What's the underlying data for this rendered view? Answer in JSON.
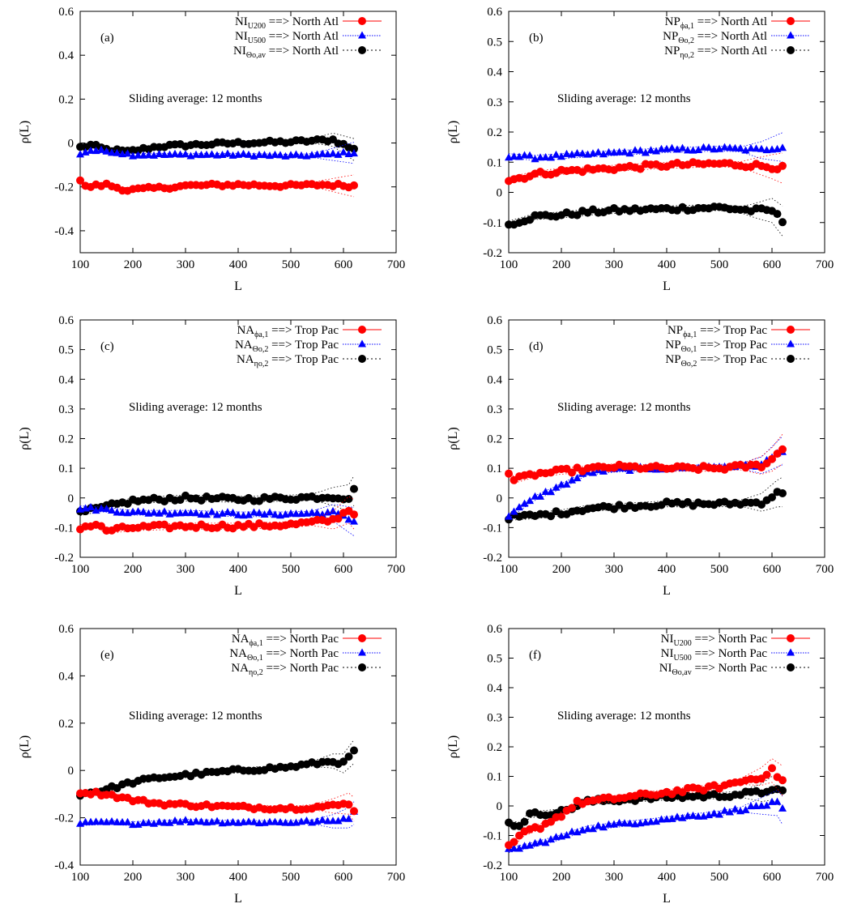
{
  "chart_data": [
    {
      "panel": "(a)",
      "type": "scatter",
      "xlabel": "L",
      "ylabel": "ρ(L)",
      "xlim": [
        100,
        700
      ],
      "ylim": [
        -0.5,
        0.6
      ],
      "xticks": [
        100,
        200,
        300,
        400,
        500,
        600,
        700
      ],
      "yticks": [
        -0.4,
        -0.2,
        0,
        0.2,
        0.4,
        0.6
      ],
      "ytick_labels": [
        "-0.4",
        "-0.2",
        "0",
        "0.2",
        "0.4",
        "0.6"
      ],
      "annotation": "Sliding average: 12 months",
      "legend_position": "top-right",
      "series": [
        {
          "base": "NI",
          "sub": "U200",
          "target": "==> North Atl",
          "color": "#ff0000",
          "marker": "circle",
          "anchors": [
            [
              100,
              -0.17
            ],
            [
              110,
              -0.2
            ],
            [
              150,
              -0.19
            ],
            [
              190,
              -0.215
            ],
            [
              250,
              -0.205
            ],
            [
              300,
              -0.195
            ],
            [
              400,
              -0.19
            ],
            [
              500,
              -0.195
            ],
            [
              560,
              -0.19
            ],
            [
              620,
              -0.195
            ]
          ]
        },
        {
          "base": "NI",
          "sub": "U500",
          "target": "==> North Atl",
          "color": "#0000ff",
          "marker": "triangle",
          "anchors": [
            [
              100,
              -0.05
            ],
            [
              120,
              -0.035
            ],
            [
              160,
              -0.04
            ],
            [
              200,
              -0.055
            ],
            [
              300,
              -0.055
            ],
            [
              400,
              -0.055
            ],
            [
              500,
              -0.06
            ],
            [
              560,
              -0.055
            ],
            [
              620,
              -0.045
            ]
          ]
        },
        {
          "base": "NI",
          "sub": "Θo,av",
          "target": "==> North Atl",
          "color": "#000000",
          "marker": "circle",
          "anchors": [
            [
              100,
              -0.02
            ],
            [
              120,
              -0.01
            ],
            [
              150,
              -0.03
            ],
            [
              190,
              -0.04
            ],
            [
              250,
              -0.015
            ],
            [
              300,
              -0.01
            ],
            [
              400,
              0.0
            ],
            [
              500,
              0.005
            ],
            [
              580,
              0.015
            ],
            [
              620,
              -0.03
            ]
          ]
        }
      ]
    },
    {
      "panel": "(b)",
      "type": "scatter",
      "xlabel": "L",
      "ylabel": "ρ(L)",
      "xlim": [
        100,
        700
      ],
      "ylim": [
        -0.2,
        0.6
      ],
      "xticks": [
        100,
        200,
        300,
        400,
        500,
        600,
        700
      ],
      "yticks": [
        -0.2,
        -0.1,
        0,
        0.1,
        0.2,
        0.3,
        0.4,
        0.5,
        0.6
      ],
      "ytick_labels": [
        "-0.2",
        "-0.1",
        "0",
        "0.1",
        "0.2",
        "0.3",
        "0.4",
        "0.5",
        "0.6"
      ],
      "annotation": "Sliding average: 12 months",
      "legend_position": "top-right",
      "series": [
        {
          "base": "NP",
          "sub": "ϕa,1",
          "target": "==> North Atl",
          "color": "#ff0000",
          "marker": "circle",
          "anchors": [
            [
              100,
              0.04
            ],
            [
              150,
              0.06
            ],
            [
              200,
              0.07
            ],
            [
              300,
              0.08
            ],
            [
              400,
              0.09
            ],
            [
              500,
              0.095
            ],
            [
              560,
              0.09
            ],
            [
              600,
              0.085
            ],
            [
              620,
              0.08
            ]
          ]
        },
        {
          "base": "NP",
          "sub": "Θo,2",
          "target": "==> North Atl",
          "color": "#0000ff",
          "marker": "triangle",
          "anchors": [
            [
              100,
              0.12
            ],
            [
              150,
              0.115
            ],
            [
              200,
              0.12
            ],
            [
              300,
              0.13
            ],
            [
              400,
              0.14
            ],
            [
              500,
              0.145
            ],
            [
              580,
              0.14
            ],
            [
              620,
              0.15
            ]
          ]
        },
        {
          "base": "NP",
          "sub": "ηo,2",
          "target": "==> North Atl",
          "color": "#000000",
          "marker": "circle",
          "anchors": [
            [
              100,
              -0.105
            ],
            [
              150,
              -0.08
            ],
            [
              200,
              -0.075
            ],
            [
              250,
              -0.065
            ],
            [
              300,
              -0.06
            ],
            [
              400,
              -0.055
            ],
            [
              500,
              -0.05
            ],
            [
              560,
              -0.06
            ],
            [
              600,
              -0.06
            ],
            [
              620,
              -0.095
            ]
          ]
        }
      ]
    },
    {
      "panel": "(c)",
      "type": "scatter",
      "xlabel": "L",
      "ylabel": "ρ(L)",
      "xlim": [
        100,
        700
      ],
      "ylim": [
        -0.2,
        0.6
      ],
      "xticks": [
        100,
        200,
        300,
        400,
        500,
        600,
        700
      ],
      "yticks": [
        -0.2,
        -0.1,
        0,
        0.1,
        0.2,
        0.3,
        0.4,
        0.5,
        0.6
      ],
      "ytick_labels": [
        "-0.2",
        "-0.1",
        "0",
        "0.1",
        "0.2",
        "0.3",
        "0.4",
        "0.5",
        "0.6"
      ],
      "annotation": "Sliding average: 12 months",
      "legend_position": "top-right",
      "series": [
        {
          "base": "NA",
          "sub": "ϕa,1",
          "target": "==> Trop Pac",
          "color": "#ff0000",
          "marker": "circle",
          "anchors": [
            [
              100,
              -0.1
            ],
            [
              130,
              -0.09
            ],
            [
              150,
              -0.11
            ],
            [
              200,
              -0.1
            ],
            [
              300,
              -0.095
            ],
            [
              400,
              -0.095
            ],
            [
              500,
              -0.09
            ],
            [
              580,
              -0.075
            ],
            [
              610,
              -0.04
            ],
            [
              620,
              -0.055
            ]
          ]
        },
        {
          "base": "NA",
          "sub": "Θo,2",
          "target": "==> Trop Pac",
          "color": "#0000ff",
          "marker": "triangle",
          "anchors": [
            [
              100,
              -0.035
            ],
            [
              150,
              -0.04
            ],
            [
              200,
              -0.05
            ],
            [
              300,
              -0.05
            ],
            [
              400,
              -0.055
            ],
            [
              500,
              -0.055
            ],
            [
              580,
              -0.05
            ],
            [
              620,
              -0.08
            ]
          ]
        },
        {
          "base": "NA",
          "sub": "ηo,2",
          "target": "==> Trop Pac",
          "color": "#000000",
          "marker": "circle",
          "anchors": [
            [
              100,
              -0.05
            ],
            [
              150,
              -0.03
            ],
            [
              200,
              -0.01
            ],
            [
              300,
              0.0
            ],
            [
              400,
              -0.005
            ],
            [
              500,
              0.0
            ],
            [
              580,
              0.005
            ],
            [
              610,
              0.0
            ],
            [
              620,
              0.025
            ]
          ]
        }
      ]
    },
    {
      "panel": "(d)",
      "type": "scatter",
      "xlabel": "L",
      "ylabel": "ρ(L)",
      "xlim": [
        100,
        700
      ],
      "ylim": [
        -0.2,
        0.6
      ],
      "xticks": [
        100,
        200,
        300,
        400,
        500,
        600,
        700
      ],
      "yticks": [
        -0.2,
        -0.1,
        0,
        0.1,
        0.2,
        0.3,
        0.4,
        0.5,
        0.6
      ],
      "ytick_labels": [
        "-0.2",
        "-0.1",
        "0",
        "0.1",
        "0.2",
        "0.3",
        "0.4",
        "0.5",
        "0.6"
      ],
      "annotation": "Sliding average: 12 months",
      "legend_position": "top-right",
      "series": [
        {
          "base": "NP",
          "sub": "ϕa,1",
          "target": "==> Trop Pac",
          "color": "#ff0000",
          "marker": "circle",
          "anchors": [
            [
              100,
              0.085
            ],
            [
              110,
              0.06
            ],
            [
              150,
              0.08
            ],
            [
              200,
              0.09
            ],
            [
              300,
              0.105
            ],
            [
              400,
              0.1
            ],
            [
              500,
              0.1
            ],
            [
              580,
              0.11
            ],
            [
              600,
              0.13
            ],
            [
              620,
              0.165
            ]
          ]
        },
        {
          "base": "NP",
          "sub": "Θo,1",
          "target": "==> Trop Pac",
          "color": "#0000ff",
          "marker": "triangle",
          "anchors": [
            [
              100,
              -0.06
            ],
            [
              150,
              0.0
            ],
            [
              200,
              0.04
            ],
            [
              250,
              0.085
            ],
            [
              300,
              0.095
            ],
            [
              400,
              0.1
            ],
            [
              500,
              0.105
            ],
            [
              580,
              0.11
            ],
            [
              620,
              0.16
            ]
          ]
        },
        {
          "base": "NP",
          "sub": "Θo,2",
          "target": "==> Trop Pac",
          "color": "#000000",
          "marker": "circle",
          "anchors": [
            [
              100,
              -0.065
            ],
            [
              150,
              -0.06
            ],
            [
              200,
              -0.05
            ],
            [
              250,
              -0.035
            ],
            [
              300,
              -0.03
            ],
            [
              400,
              -0.02
            ],
            [
              500,
              -0.02
            ],
            [
              580,
              -0.015
            ],
            [
              610,
              0.015
            ],
            [
              620,
              0.02
            ]
          ]
        }
      ]
    },
    {
      "panel": "(e)",
      "type": "scatter",
      "xlabel": "L",
      "ylabel": "ρ(L)",
      "xlim": [
        100,
        700
      ],
      "ylim": [
        -0.4,
        0.6
      ],
      "xticks": [
        100,
        200,
        300,
        400,
        500,
        600,
        700
      ],
      "yticks": [
        -0.4,
        -0.2,
        0,
        0.2,
        0.4,
        0.6
      ],
      "ytick_labels": [
        "-0.4",
        "-0.2",
        "0",
        "0.2",
        "0.4",
        "0.6"
      ],
      "annotation": "Sliding average: 12 months",
      "legend_position": "top-right",
      "series": [
        {
          "base": "NA",
          "sub": "ϕa,1",
          "target": "==> North Pac",
          "color": "#ff0000",
          "marker": "circle",
          "anchors": [
            [
              100,
              -0.09
            ],
            [
              150,
              -0.1
            ],
            [
              200,
              -0.125
            ],
            [
              250,
              -0.14
            ],
            [
              300,
              -0.145
            ],
            [
              400,
              -0.155
            ],
            [
              500,
              -0.16
            ],
            [
              580,
              -0.15
            ],
            [
              610,
              -0.14
            ],
            [
              620,
              -0.165
            ]
          ]
        },
        {
          "base": "NA",
          "sub": "Θo,1",
          "target": "==> North Pac",
          "color": "#0000ff",
          "marker": "triangle",
          "anchors": [
            [
              100,
              -0.225
            ],
            [
              150,
              -0.22
            ],
            [
              200,
              -0.225
            ],
            [
              300,
              -0.215
            ],
            [
              400,
              -0.22
            ],
            [
              500,
              -0.22
            ],
            [
              580,
              -0.215
            ],
            [
              610,
              -0.2
            ],
            [
              620,
              -0.18
            ]
          ]
        },
        {
          "base": "NA",
          "sub": "ηo,2",
          "target": "==> North Pac",
          "color": "#000000",
          "marker": "circle",
          "anchors": [
            [
              100,
              -0.1
            ],
            [
              150,
              -0.08
            ],
            [
              200,
              -0.05
            ],
            [
              250,
              -0.03
            ],
            [
              300,
              -0.02
            ],
            [
              400,
              0.0
            ],
            [
              500,
              0.015
            ],
            [
              580,
              0.04
            ],
            [
              600,
              0.03
            ],
            [
              620,
              0.08
            ]
          ]
        }
      ]
    },
    {
      "panel": "(f)",
      "type": "scatter",
      "xlabel": "L",
      "ylabel": "ρ(L)",
      "xlim": [
        100,
        700
      ],
      "ylim": [
        -0.2,
        0.6
      ],
      "xticks": [
        100,
        200,
        300,
        400,
        500,
        600,
        700
      ],
      "yticks": [
        -0.2,
        -0.1,
        0,
        0.1,
        0.2,
        0.3,
        0.4,
        0.5,
        0.6
      ],
      "ytick_labels": [
        "-0.2",
        "-0.1",
        "0",
        "0.1",
        "0.2",
        "0.3",
        "0.4",
        "0.5",
        "0.6"
      ],
      "annotation": "Sliding average: 12 months",
      "legend_position": "top-right",
      "series": [
        {
          "base": "NI",
          "sub": "U200",
          "target": "==> North Pac",
          "color": "#ff0000",
          "marker": "circle",
          "anchors": [
            [
              100,
              -0.14
            ],
            [
              130,
              -0.09
            ],
            [
              160,
              -0.07
            ],
            [
              200,
              -0.03
            ],
            [
              230,
              0.01
            ],
            [
              300,
              0.025
            ],
            [
              400,
              0.045
            ],
            [
              500,
              0.065
            ],
            [
              580,
              0.1
            ],
            [
              600,
              0.12
            ],
            [
              620,
              0.085
            ]
          ]
        },
        {
          "base": "NI",
          "sub": "U500",
          "target": "==> North Pac",
          "color": "#0000ff",
          "marker": "triangle",
          "anchors": [
            [
              100,
              -0.15
            ],
            [
              150,
              -0.13
            ],
            [
              200,
              -0.105
            ],
            [
              250,
              -0.075
            ],
            [
              300,
              -0.065
            ],
            [
              400,
              -0.045
            ],
            [
              500,
              -0.025
            ],
            [
              580,
              0.0
            ],
            [
              610,
              0.01
            ],
            [
              620,
              -0.015
            ]
          ]
        },
        {
          "base": "NI",
          "sub": "Θo,av",
          "target": "==> North Pac",
          "color": "#000000",
          "marker": "circle",
          "anchors": [
            [
              100,
              -0.06
            ],
            [
              120,
              -0.065
            ],
            [
              140,
              -0.03
            ],
            [
              200,
              -0.02
            ],
            [
              250,
              0.015
            ],
            [
              300,
              0.02
            ],
            [
              400,
              0.03
            ],
            [
              500,
              0.035
            ],
            [
              580,
              0.045
            ],
            [
              600,
              0.06
            ],
            [
              620,
              0.045
            ]
          ]
        }
      ]
    }
  ]
}
